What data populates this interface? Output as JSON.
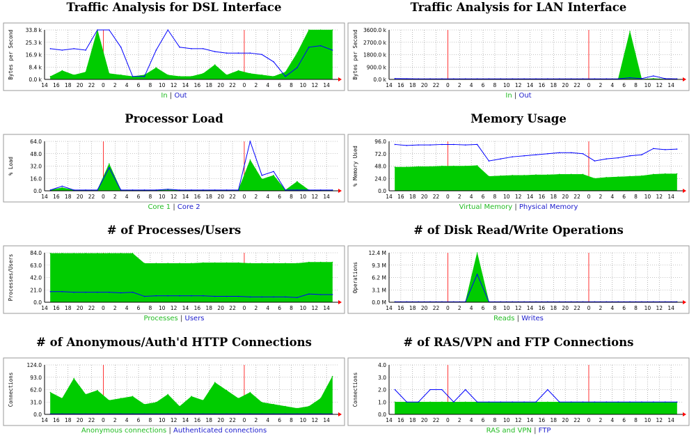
{
  "chart_data": [
    {
      "id": "dsl",
      "type": "area",
      "title": "Traffic Analysis for DSL Interface",
      "ylabel": "Bytes per Second",
      "yticks": [
        "0.0 k",
        "8.4 k",
        "16.9 k",
        "25.3 k",
        "33.8 k"
      ],
      "ylim": [
        0,
        33.8
      ],
      "x": [
        "14",
        "16",
        "18",
        "20",
        "22",
        "0",
        "2",
        "4",
        "6",
        "8",
        "10",
        "12",
        "14",
        "16",
        "18",
        "20",
        "22",
        "0",
        "2",
        "4",
        "6",
        "8",
        "10",
        "12",
        "14"
      ],
      "series": [
        {
          "name": "In",
          "color": "#00cc00",
          "style": "area",
          "values": [
            2,
            6,
            3,
            5,
            33.8,
            4,
            3,
            2,
            3,
            8,
            3,
            2,
            2,
            4,
            10,
            3,
            6,
            4,
            3,
            2,
            5,
            18,
            33.8,
            33.8,
            33.8
          ]
        },
        {
          "name": "Out",
          "color": "#0000ff",
          "style": "line",
          "values": [
            21,
            20,
            21,
            20,
            33.8,
            33.8,
            22,
            2,
            2,
            20,
            33.8,
            22,
            21,
            21,
            19,
            18,
            18,
            18,
            17,
            12,
            2,
            8,
            22,
            23,
            20
          ]
        }
      ],
      "legend": [
        "In",
        "Out"
      ]
    },
    {
      "id": "lan",
      "type": "area",
      "title": "Traffic Analysis for LAN Interface",
      "ylabel": "Bytes per Second",
      "yticks": [
        "0.0 k",
        "900.0 k",
        "1800.0 k",
        "2700.0 k",
        "3600.0 k"
      ],
      "ylim": [
        0,
        3600
      ],
      "x": [
        "14",
        "16",
        "18",
        "20",
        "22",
        "0",
        "2",
        "4",
        "6",
        "8",
        "10",
        "12",
        "14",
        "16",
        "18",
        "20",
        "22",
        "0",
        "2",
        "4",
        "6",
        "8",
        "10",
        "12",
        "14"
      ],
      "series": [
        {
          "name": "In",
          "color": "#00cc00",
          "style": "area",
          "values": [
            10,
            10,
            10,
            10,
            10,
            10,
            10,
            10,
            10,
            10,
            10,
            10,
            10,
            10,
            10,
            10,
            10,
            10,
            10,
            10,
            3500,
            20,
            60,
            20,
            10
          ]
        },
        {
          "name": "Out",
          "color": "#0000ff",
          "style": "line",
          "values": [
            60,
            50,
            40,
            40,
            40,
            40,
            40,
            40,
            40,
            40,
            40,
            40,
            40,
            40,
            40,
            40,
            40,
            40,
            40,
            40,
            120,
            60,
            250,
            60,
            40
          ]
        }
      ],
      "legend": [
        "In",
        "Out"
      ]
    },
    {
      "id": "cpu",
      "type": "area",
      "title": "Processor Load",
      "ylabel": "% Load",
      "yticks": [
        "0.0",
        "16.0",
        "32.0",
        "48.0",
        "64.0"
      ],
      "ylim": [
        0,
        64
      ],
      "x": [
        "14",
        "16",
        "18",
        "20",
        "22",
        "0",
        "2",
        "4",
        "6",
        "8",
        "10",
        "12",
        "14",
        "16",
        "18",
        "20",
        "22",
        "0",
        "2",
        "4",
        "6",
        "8",
        "10",
        "12",
        "14"
      ],
      "series": [
        {
          "name": "Core 1",
          "color": "#00cc00",
          "style": "area",
          "values": [
            1,
            4,
            1,
            1,
            1,
            35,
            1,
            1,
            1,
            1,
            1,
            1,
            1,
            1,
            1,
            1,
            1,
            40,
            15,
            20,
            1,
            12,
            1,
            1,
            1
          ]
        },
        {
          "name": "Core 2",
          "color": "#0000ff",
          "style": "line",
          "values": [
            1,
            6,
            1,
            1,
            1,
            30,
            1,
            1,
            1,
            1,
            2,
            1,
            1,
            1,
            1,
            1,
            1,
            64,
            20,
            25,
            1,
            1,
            1,
            1,
            1
          ]
        }
      ],
      "legend": [
        "Core 1",
        "Core 2"
      ]
    },
    {
      "id": "mem",
      "type": "area",
      "title": "Memory Usage",
      "ylabel": "% Memory Used",
      "yticks": [
        "0.0",
        "24.0",
        "48.0",
        "72.0",
        "96.0"
      ],
      "ylim": [
        0,
        96
      ],
      "x": [
        "14",
        "16",
        "18",
        "20",
        "22",
        "0",
        "2",
        "4",
        "6",
        "8",
        "10",
        "12",
        "14",
        "16",
        "18",
        "20",
        "22",
        "0",
        "2",
        "4",
        "6",
        "8",
        "10",
        "12",
        "14"
      ],
      "series": [
        {
          "name": "Virtual Memory",
          "color": "#00cc00",
          "style": "area",
          "values": [
            46,
            46,
            47,
            47,
            48,
            48,
            48,
            49,
            28,
            29,
            30,
            30,
            31,
            31,
            32,
            32,
            32,
            24,
            26,
            27,
            28,
            29,
            32,
            33,
            33
          ]
        },
        {
          "name": "Physical Memory",
          "color": "#0000ff",
          "style": "line",
          "values": [
            90,
            88,
            89,
            89,
            90,
            90,
            89,
            90,
            58,
            62,
            66,
            68,
            70,
            72,
            74,
            74,
            72,
            58,
            62,
            64,
            68,
            70,
            82,
            80,
            81
          ]
        }
      ],
      "legend": [
        "Virtual Memory",
        "Physical Memory"
      ]
    },
    {
      "id": "procs",
      "type": "area",
      "title": "# of Processes/Users",
      "ylabel": "Processes/Users",
      "yticks": [
        "0.0",
        "21.0",
        "42.0",
        "63.0",
        "84.0"
      ],
      "ylim": [
        0,
        84
      ],
      "x": [
        "14",
        "16",
        "18",
        "20",
        "22",
        "0",
        "2",
        "4",
        "6",
        "8",
        "10",
        "12",
        "14",
        "16",
        "18",
        "20",
        "22",
        "0",
        "2",
        "4",
        "6",
        "8",
        "10",
        "12",
        "14"
      ],
      "series": [
        {
          "name": "Processes",
          "color": "#00cc00",
          "style": "area",
          "values": [
            83,
            83,
            83,
            83,
            83,
            83,
            83,
            83,
            66,
            66,
            66,
            66,
            66,
            67,
            67,
            67,
            67,
            66,
            66,
            66,
            66,
            66,
            68,
            68,
            68
          ]
        },
        {
          "name": "Users",
          "color": "#0000ff",
          "style": "line",
          "values": [
            18,
            18,
            17,
            17,
            17,
            17,
            16,
            17,
            10,
            11,
            11,
            11,
            11,
            11,
            10,
            10,
            10,
            9,
            9,
            9,
            9,
            8,
            14,
            13,
            13
          ]
        }
      ],
      "legend": [
        "Processes",
        "Users"
      ]
    },
    {
      "id": "disk",
      "type": "area",
      "title": "# of Disk Read/Write Operations",
      "ylabel": "Operations",
      "yticks": [
        "0.0 M",
        "3.1 M",
        "6.2 M",
        "9.3 M",
        "12.4 M"
      ],
      "ylim": [
        0,
        12.4
      ],
      "x": [
        "14",
        "16",
        "18",
        "20",
        "22",
        "0",
        "2",
        "4",
        "6",
        "8",
        "10",
        "12",
        "14",
        "16",
        "18",
        "20",
        "22",
        "0",
        "2",
        "4",
        "6",
        "8",
        "10",
        "12",
        "14"
      ],
      "series": [
        {
          "name": "Reads",
          "color": "#00cc00",
          "style": "area",
          "values": [
            0.1,
            0.1,
            0.1,
            0.1,
            0.1,
            0.1,
            0.1,
            12.4,
            0.1,
            0.1,
            0.1,
            0.1,
            0.1,
            0.1,
            0.1,
            0.1,
            0.1,
            0.1,
            0.1,
            0.1,
            0.1,
            0.1,
            0.1,
            0.1,
            0.1
          ]
        },
        {
          "name": "Writes",
          "color": "#0000ff",
          "style": "line",
          "values": [
            0.1,
            0.1,
            0.1,
            0.1,
            0.1,
            0.1,
            0.1,
            7,
            0.1,
            0.1,
            0.1,
            0.1,
            0.1,
            0.1,
            0.1,
            0.1,
            0.1,
            0.1,
            0.1,
            0.1,
            0.1,
            0.1,
            0.1,
            0.1,
            0.1
          ]
        }
      ],
      "legend": [
        "Reads",
        "Writes"
      ]
    },
    {
      "id": "http",
      "type": "area",
      "title": "# of Anonymous/Auth'd HTTP Connections",
      "ylabel": "Connections",
      "yticks": [
        "0.0",
        "31.0",
        "62.0",
        "93.0",
        "124.0"
      ],
      "ylim": [
        0,
        124
      ],
      "x": [
        "14",
        "16",
        "18",
        "20",
        "22",
        "0",
        "2",
        "4",
        "6",
        "8",
        "10",
        "12",
        "14",
        "16",
        "18",
        "20",
        "22",
        "0",
        "2",
        "4",
        "6",
        "8",
        "10",
        "12",
        "14"
      ],
      "series": [
        {
          "name": "Anonymous connections",
          "color": "#00cc00",
          "style": "area",
          "values": [
            55,
            40,
            90,
            50,
            60,
            35,
            40,
            45,
            25,
            30,
            50,
            20,
            45,
            35,
            80,
            60,
            40,
            55,
            30,
            25,
            20,
            15,
            20,
            40,
            95
          ]
        },
        {
          "name": "Authenticated connections",
          "color": "#0000ff",
          "style": "line",
          "values": [
            1,
            1,
            1,
            1,
            1,
            1,
            1,
            1,
            1,
            1,
            1,
            1,
            1,
            1,
            1,
            1,
            1,
            1,
            1,
            1,
            1,
            1,
            1,
            1,
            1
          ]
        }
      ],
      "legend": [
        "Anonymous connections",
        "Authenticated connections"
      ]
    },
    {
      "id": "ras",
      "type": "area",
      "title": "# of RAS/VPN and FTP Connections",
      "ylabel": "Connections",
      "yticks": [
        "0.0",
        "1.0",
        "2.0",
        "3.0",
        "4.0"
      ],
      "ylim": [
        0,
        4
      ],
      "x": [
        "14",
        "16",
        "18",
        "20",
        "22",
        "0",
        "2",
        "4",
        "6",
        "8",
        "10",
        "12",
        "14",
        "16",
        "18",
        "20",
        "22",
        "0",
        "2",
        "4",
        "6",
        "8",
        "10",
        "12",
        "14"
      ],
      "series": [
        {
          "name": "RAS and VPN",
          "color": "#00cc00",
          "style": "area",
          "values": [
            1,
            1,
            1,
            1,
            1,
            1,
            1,
            1,
            1,
            1,
            1,
            1,
            1,
            1,
            1,
            1,
            1,
            1,
            1,
            1,
            1,
            1,
            1,
            1,
            1
          ]
        },
        {
          "name": "FTP",
          "color": "#0000ff",
          "style": "line",
          "values": [
            2,
            1,
            1,
            2,
            2,
            1,
            2,
            1,
            1,
            1,
            1,
            1,
            1,
            2,
            1,
            1,
            1,
            1,
            1,
            1,
            1,
            1,
            1,
            1,
            1
          ]
        }
      ],
      "legend": [
        "RAS and VPN",
        "FTP"
      ]
    }
  ]
}
